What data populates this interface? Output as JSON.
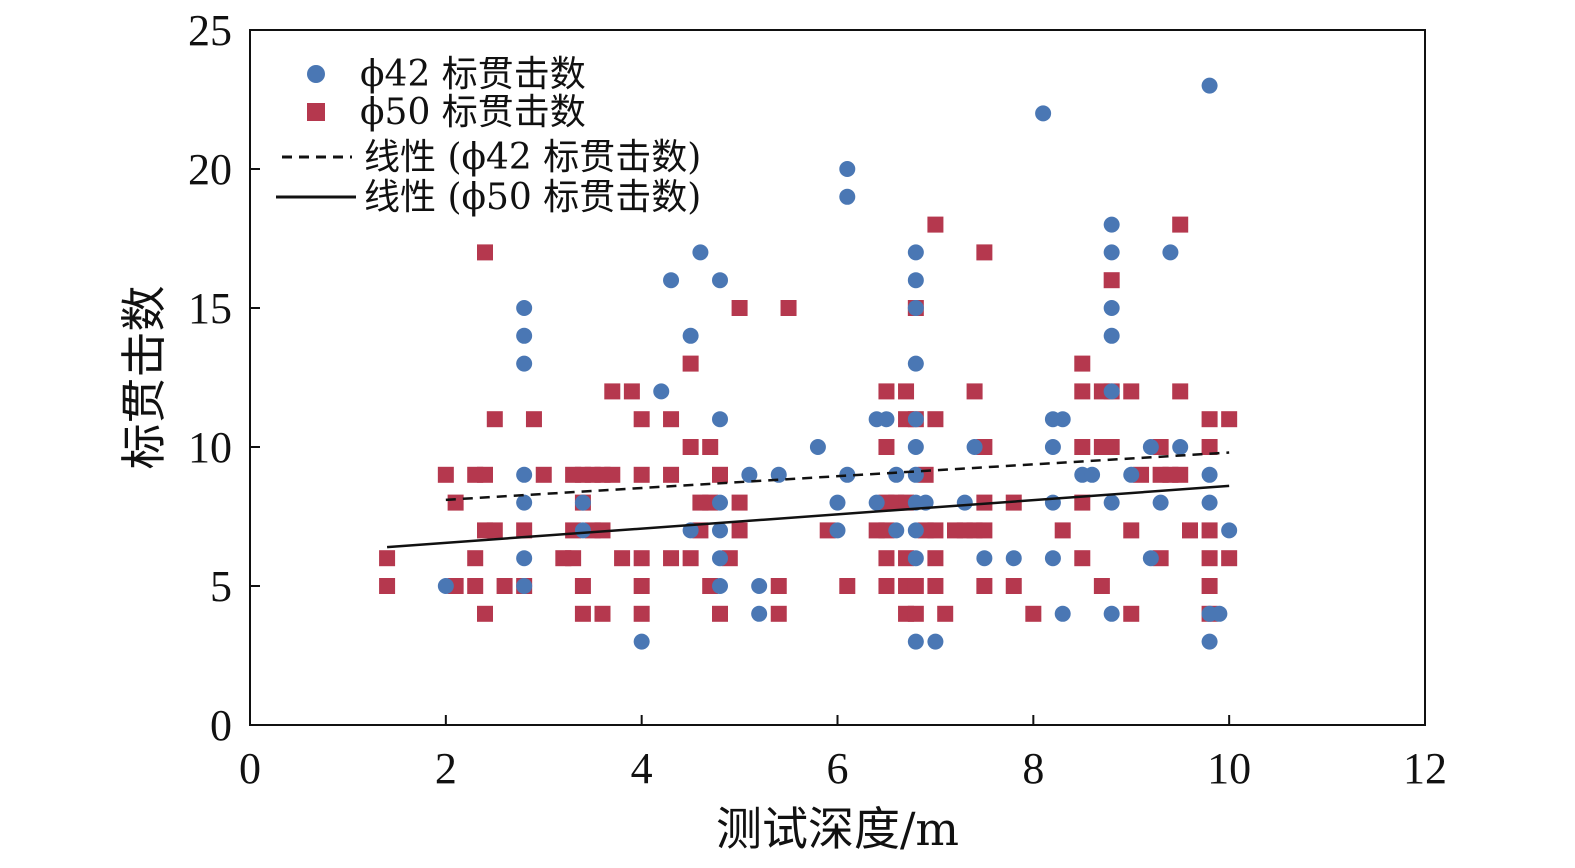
{
  "chart_data": {
    "type": "scatter",
    "xlabel": "测试深度/m",
    "ylabel": "标贯击数",
    "xlim": [
      0,
      12
    ],
    "ylim": [
      0,
      25
    ],
    "xticks": [
      "0",
      "2",
      "4",
      "6",
      "8",
      "10",
      "12"
    ],
    "yticks": [
      "0",
      "5",
      "10",
      "15",
      "20",
      "25"
    ],
    "grid": false,
    "legend_position": "top-left",
    "colors": {
      "phi42": "#4a77b4",
      "phi50": "#b5384e",
      "fit": "#111111"
    },
    "legend": [
      {
        "label": "ϕ42 标贯击数",
        "marker": "circle"
      },
      {
        "label": "ϕ50 标贯击数",
        "marker": "square"
      },
      {
        "label": "线性 (ϕ42 标贯击数)",
        "marker": "dashed-line"
      },
      {
        "label": "线性 (ϕ50 标贯击数)",
        "marker": "solid-line"
      }
    ],
    "series": [
      {
        "name": "ϕ42 标贯击数",
        "marker": "circle",
        "points": [
          [
            2.0,
            5
          ],
          [
            2.8,
            15
          ],
          [
            2.8,
            14
          ],
          [
            2.8,
            13
          ],
          [
            2.8,
            9
          ],
          [
            2.8,
            8
          ],
          [
            2.8,
            6
          ],
          [
            2.8,
            5
          ],
          [
            3.4,
            8
          ],
          [
            3.4,
            7
          ],
          [
            4.0,
            3
          ],
          [
            4.2,
            12
          ],
          [
            4.3,
            16
          ],
          [
            4.5,
            14
          ],
          [
            4.6,
            17
          ],
          [
            4.5,
            7
          ],
          [
            4.8,
            16
          ],
          [
            4.8,
            11
          ],
          [
            4.8,
            8
          ],
          [
            4.8,
            7
          ],
          [
            4.8,
            6
          ],
          [
            4.8,
            5
          ],
          [
            5.1,
            9
          ],
          [
            5.2,
            5
          ],
          [
            5.2,
            4
          ],
          [
            5.4,
            9
          ],
          [
            5.8,
            10
          ],
          [
            6.0,
            8
          ],
          [
            6.0,
            7
          ],
          [
            6.1,
            20
          ],
          [
            6.1,
            19
          ],
          [
            6.1,
            9
          ],
          [
            6.4,
            11
          ],
          [
            6.5,
            11
          ],
          [
            6.4,
            8
          ],
          [
            6.6,
            9
          ],
          [
            6.6,
            7
          ],
          [
            6.8,
            17
          ],
          [
            6.8,
            16
          ],
          [
            6.8,
            15
          ],
          [
            6.8,
            13
          ],
          [
            6.8,
            11
          ],
          [
            6.8,
            10
          ],
          [
            6.8,
            9
          ],
          [
            6.8,
            8
          ],
          [
            6.8,
            7
          ],
          [
            6.8,
            6
          ],
          [
            6.8,
            3
          ],
          [
            6.9,
            8
          ],
          [
            7.0,
            3
          ],
          [
            7.3,
            8
          ],
          [
            7.4,
            10
          ],
          [
            7.5,
            6
          ],
          [
            7.8,
            6
          ],
          [
            8.1,
            22
          ],
          [
            8.2,
            11
          ],
          [
            8.3,
            11
          ],
          [
            8.2,
            10
          ],
          [
            8.2,
            8
          ],
          [
            8.2,
            6
          ],
          [
            8.3,
            4
          ],
          [
            8.5,
            9
          ],
          [
            8.6,
            9
          ],
          [
            8.8,
            18
          ],
          [
            8.8,
            17
          ],
          [
            8.8,
            15
          ],
          [
            8.8,
            14
          ],
          [
            8.8,
            12
          ],
          [
            8.8,
            8
          ],
          [
            8.8,
            4
          ],
          [
            9.0,
            9
          ],
          [
            9.2,
            10
          ],
          [
            9.2,
            6
          ],
          [
            9.3,
            8
          ],
          [
            9.4,
            17
          ],
          [
            9.5,
            10
          ],
          [
            9.8,
            23
          ],
          [
            9.8,
            9
          ],
          [
            9.8,
            8
          ],
          [
            9.8,
            4
          ],
          [
            9.9,
            4
          ],
          [
            9.8,
            3
          ],
          [
            10.0,
            7
          ]
        ]
      },
      {
        "name": "ϕ50 标贯击数",
        "marker": "square",
        "points": [
          [
            1.4,
            6
          ],
          [
            1.4,
            5
          ],
          [
            2.0,
            9
          ],
          [
            2.1,
            8
          ],
          [
            2.1,
            5
          ],
          [
            2.3,
            9
          ],
          [
            2.3,
            6
          ],
          [
            2.3,
            5
          ],
          [
            2.4,
            17
          ],
          [
            2.4,
            9
          ],
          [
            2.4,
            7
          ],
          [
            2.4,
            4
          ],
          [
            2.5,
            11
          ],
          [
            2.5,
            7
          ],
          [
            2.6,
            5
          ],
          [
            2.8,
            7
          ],
          [
            2.8,
            5
          ],
          [
            2.9,
            11
          ],
          [
            3.0,
            9
          ],
          [
            3.2,
            6
          ],
          [
            3.3,
            9
          ],
          [
            3.3,
            7
          ],
          [
            3.3,
            6
          ],
          [
            3.4,
            9
          ],
          [
            3.4,
            8
          ],
          [
            3.4,
            5
          ],
          [
            3.4,
            4
          ],
          [
            3.5,
            9
          ],
          [
            3.5,
            7
          ],
          [
            3.6,
            9
          ],
          [
            3.6,
            7
          ],
          [
            3.6,
            4
          ],
          [
            3.7,
            12
          ],
          [
            3.7,
            9
          ],
          [
            3.8,
            6
          ],
          [
            3.9,
            12
          ],
          [
            4.0,
            11
          ],
          [
            4.0,
            9
          ],
          [
            4.0,
            6
          ],
          [
            4.0,
            5
          ],
          [
            4.0,
            4
          ],
          [
            4.3,
            11
          ],
          [
            4.3,
            9
          ],
          [
            4.3,
            6
          ],
          [
            4.5,
            13
          ],
          [
            4.5,
            10
          ],
          [
            4.5,
            6
          ],
          [
            4.6,
            8
          ],
          [
            4.6,
            7
          ],
          [
            4.7,
            10
          ],
          [
            4.7,
            8
          ],
          [
            4.7,
            5
          ],
          [
            4.8,
            9
          ],
          [
            4.8,
            4
          ],
          [
            4.9,
            6
          ],
          [
            5.0,
            15
          ],
          [
            5.0,
            8
          ],
          [
            5.0,
            7
          ],
          [
            5.4,
            5
          ],
          [
            5.4,
            4
          ],
          [
            5.5,
            15
          ],
          [
            5.9,
            7
          ],
          [
            6.1,
            5
          ],
          [
            6.4,
            7
          ],
          [
            6.5,
            12
          ],
          [
            6.5,
            10
          ],
          [
            6.5,
            8
          ],
          [
            6.5,
            7
          ],
          [
            6.5,
            6
          ],
          [
            6.5,
            5
          ],
          [
            6.6,
            8
          ],
          [
            6.7,
            12
          ],
          [
            6.7,
            11
          ],
          [
            6.7,
            8
          ],
          [
            6.7,
            6
          ],
          [
            6.7,
            5
          ],
          [
            6.7,
            4
          ],
          [
            6.8,
            15
          ],
          [
            6.8,
            11
          ],
          [
            6.8,
            5
          ],
          [
            6.8,
            4
          ],
          [
            6.9,
            9
          ],
          [
            6.9,
            7
          ],
          [
            7.0,
            18
          ],
          [
            7.0,
            11
          ],
          [
            7.0,
            7
          ],
          [
            7.0,
            6
          ],
          [
            7.0,
            5
          ],
          [
            7.1,
            4
          ],
          [
            7.2,
            7
          ],
          [
            7.3,
            7
          ],
          [
            7.4,
            12
          ],
          [
            7.4,
            7
          ],
          [
            7.5,
            17
          ],
          [
            7.5,
            10
          ],
          [
            7.5,
            8
          ],
          [
            7.5,
            7
          ],
          [
            7.5,
            5
          ],
          [
            7.8,
            8
          ],
          [
            7.8,
            5
          ],
          [
            8.0,
            4
          ],
          [
            8.3,
            7
          ],
          [
            8.5,
            13
          ],
          [
            8.5,
            12
          ],
          [
            8.5,
            10
          ],
          [
            8.5,
            8
          ],
          [
            8.5,
            6
          ],
          [
            8.7,
            12
          ],
          [
            8.7,
            10
          ],
          [
            8.7,
            5
          ],
          [
            8.8,
            16
          ],
          [
            8.8,
            12
          ],
          [
            8.8,
            10
          ],
          [
            9.0,
            12
          ],
          [
            9.0,
            7
          ],
          [
            9.0,
            4
          ],
          [
            9.1,
            9
          ],
          [
            9.3,
            10
          ],
          [
            9.3,
            9
          ],
          [
            9.3,
            6
          ],
          [
            9.4,
            9
          ],
          [
            9.5,
            18
          ],
          [
            9.5,
            12
          ],
          [
            9.5,
            9
          ],
          [
            9.6,
            7
          ],
          [
            9.8,
            11
          ],
          [
            9.8,
            10
          ],
          [
            9.8,
            7
          ],
          [
            9.8,
            6
          ],
          [
            9.8,
            5
          ],
          [
            9.8,
            4
          ],
          [
            10.0,
            11
          ],
          [
            10.0,
            6
          ]
        ]
      }
    ],
    "trendlines": [
      {
        "name": "线性 (ϕ42 标贯击数)",
        "style": "dashed",
        "x": [
          2.0,
          10.0
        ],
        "y": [
          8.1,
          9.8
        ]
      },
      {
        "name": "线性 (ϕ50 标贯击数)",
        "style": "solid",
        "x": [
          1.4,
          10.0
        ],
        "y": [
          6.4,
          8.6
        ]
      }
    ]
  }
}
